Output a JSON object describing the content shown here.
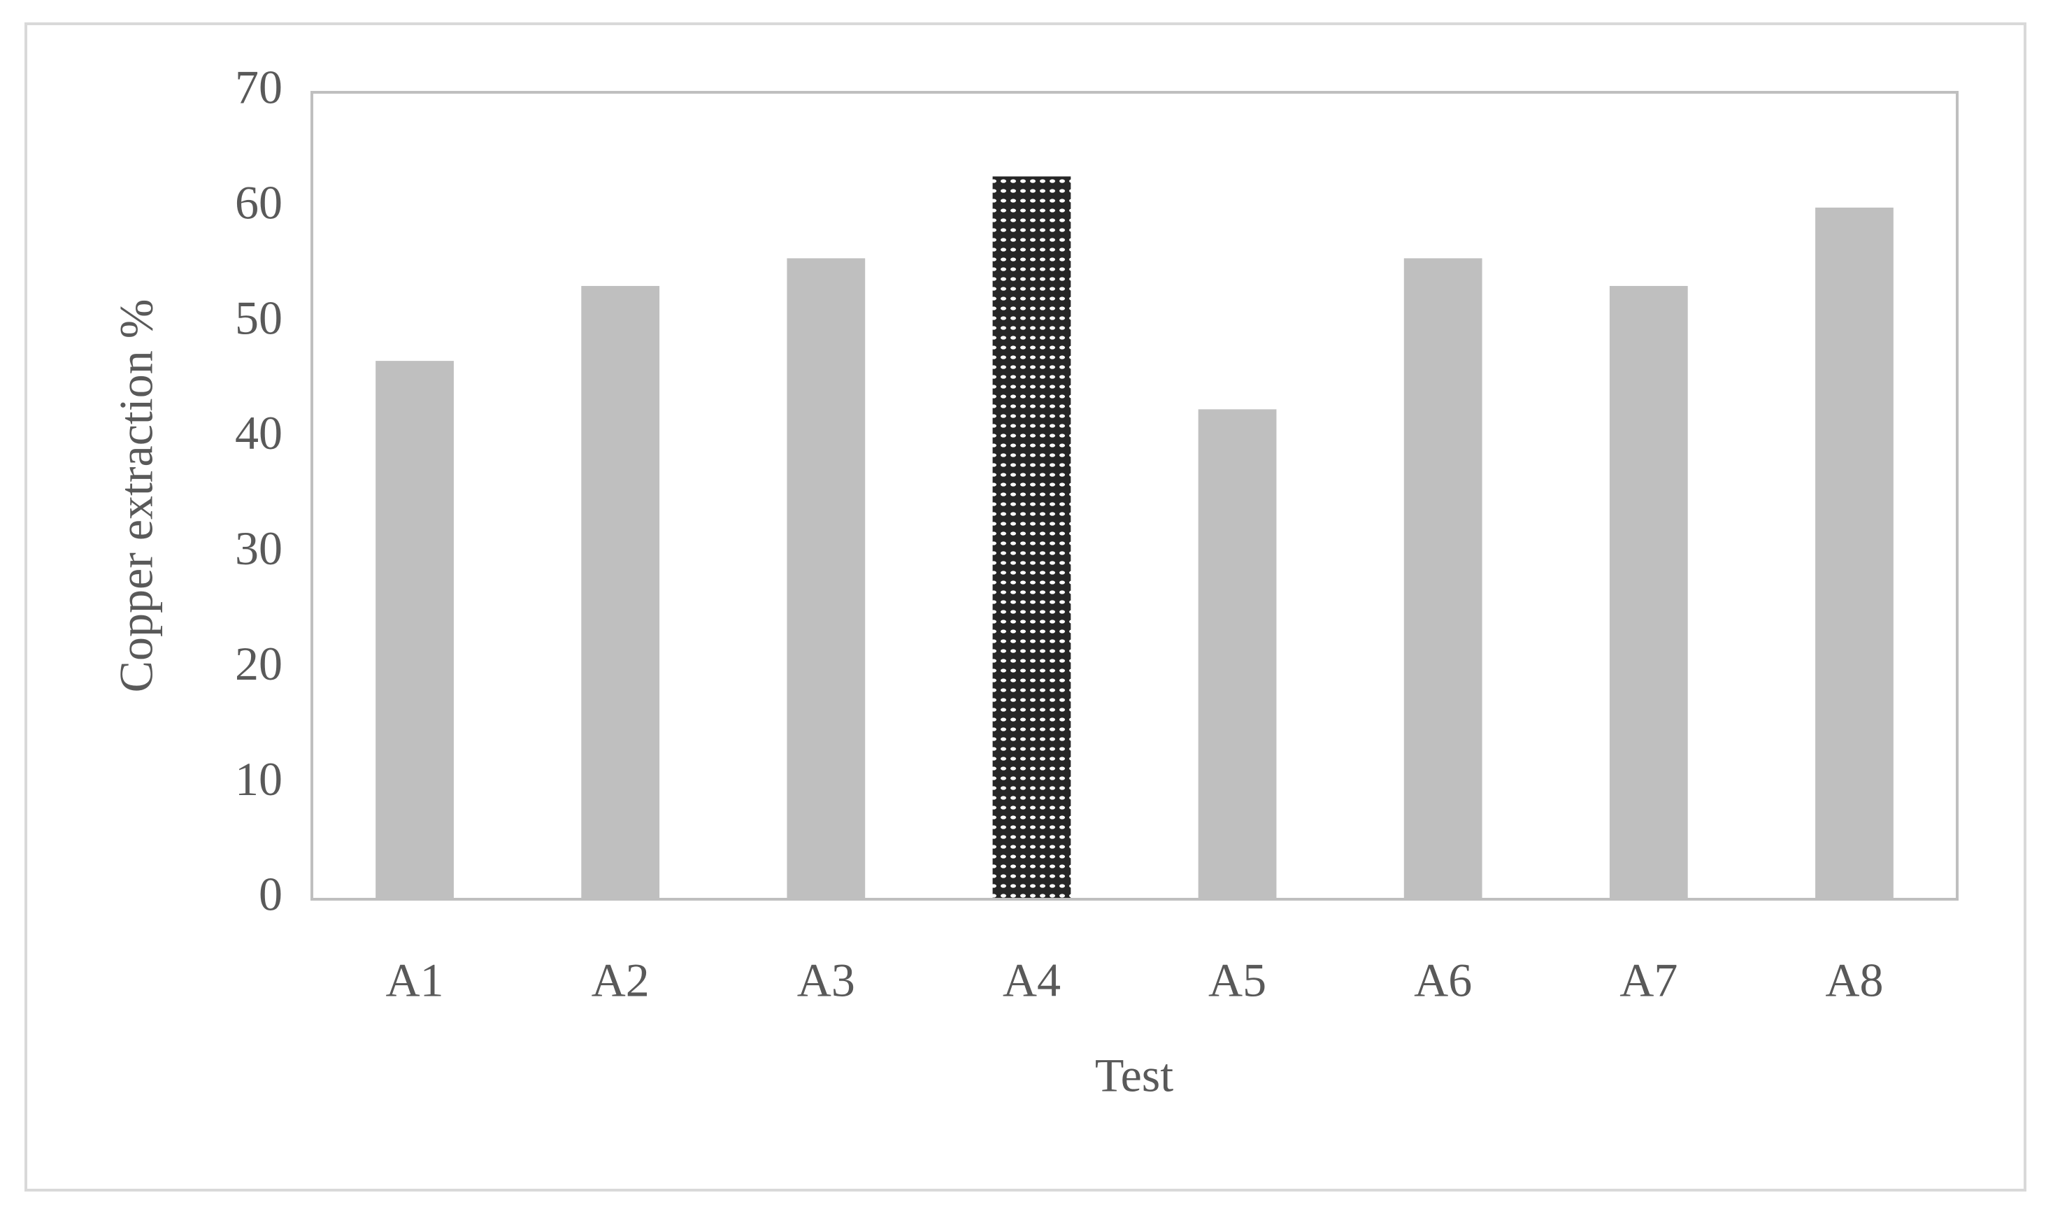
{
  "chart_data": {
    "type": "bar",
    "categories": [
      "A1",
      "A2",
      "A3",
      "A4",
      "A5",
      "A6",
      "A7",
      "A8"
    ],
    "values": [
      46.7,
      53.2,
      55.6,
      62.7,
      42.5,
      55.6,
      53.2,
      60.0
    ],
    "colors": [
      "#bfbfbf",
      "#bfbfbf",
      "#bfbfbf",
      "#262626",
      "#bfbfbf",
      "#bfbfbf",
      "#bfbfbf",
      "#bfbfbf"
    ],
    "bar_patterns": [
      "none",
      "none",
      "none",
      "dots",
      "none",
      "none",
      "none",
      "none"
    ],
    "x_label": "Test",
    "y_label": "Copper extraction %",
    "ylim": [
      0,
      70
    ],
    "yticks": [
      0,
      10,
      20,
      30,
      40,
      50,
      60,
      70
    ],
    "grid": false
  }
}
